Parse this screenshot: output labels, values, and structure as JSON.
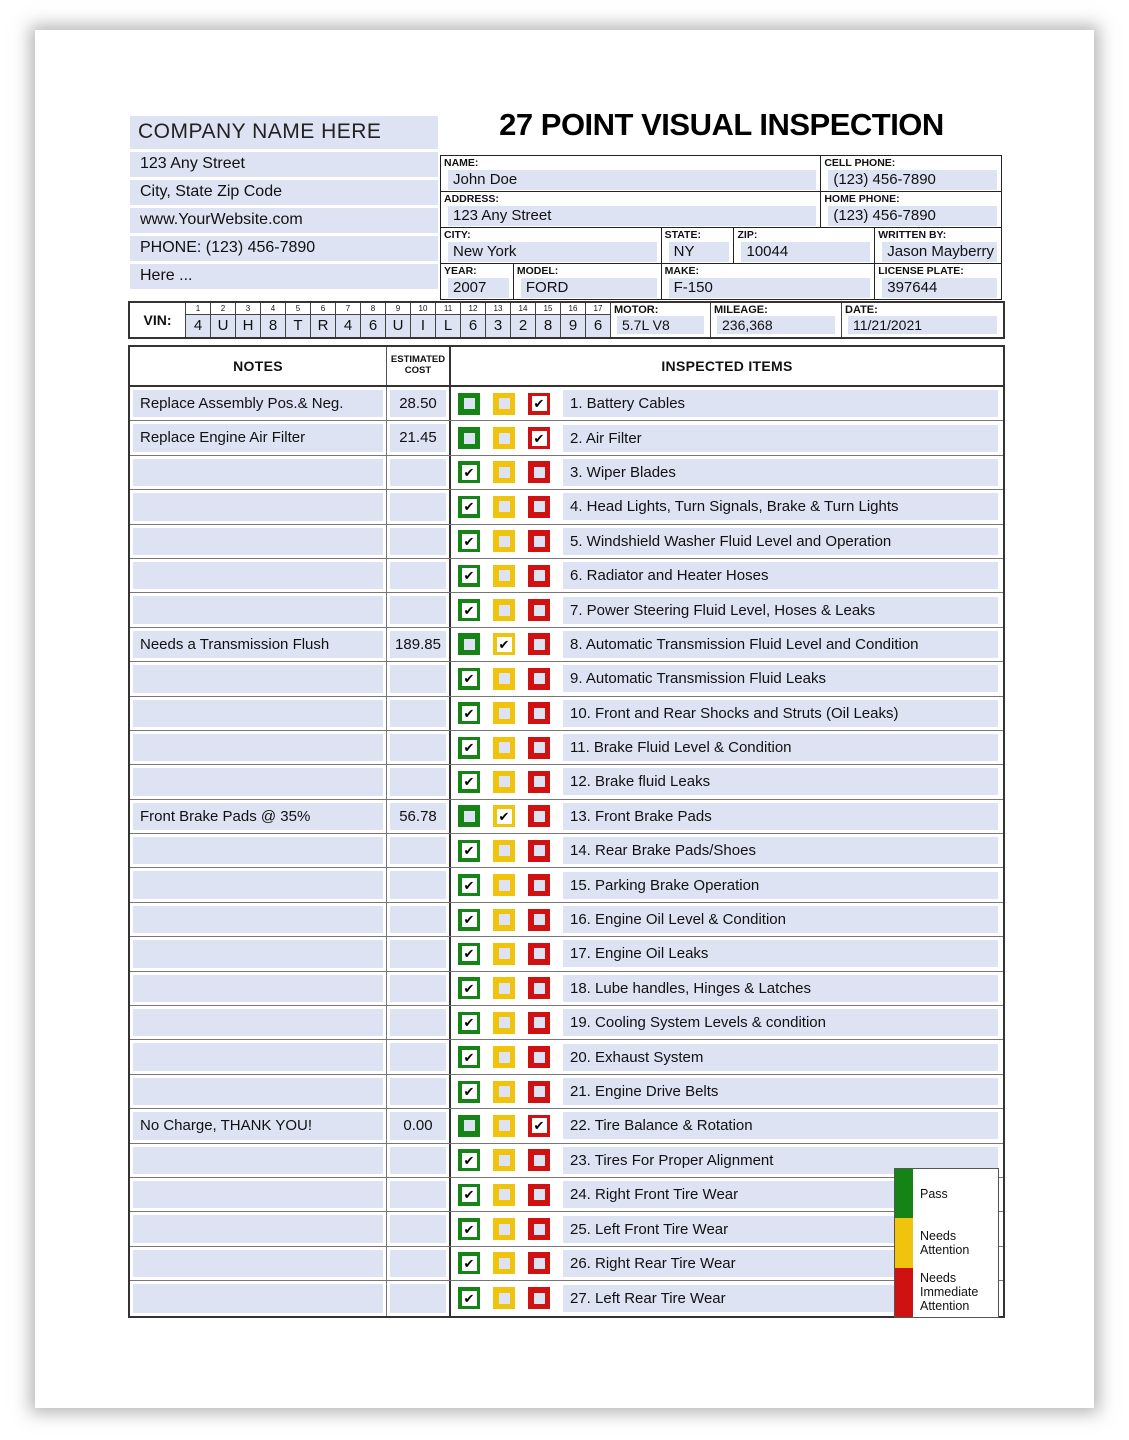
{
  "company": {
    "name": "COMPANY NAME HERE",
    "lines": [
      "123 Any Street",
      "City, State Zip Code",
      "www.YourWebsite.com",
      "PHONE: (123) 456-7890",
      "Here ..."
    ]
  },
  "title": "27 POINT VISUAL INSPECTION",
  "form": {
    "name_label": "NAME:",
    "name": "John Doe",
    "cell_label": "CELL PHONE:",
    "cell": "(123) 456-7890",
    "address_label": "ADDRESS:",
    "address": "123 Any Street",
    "home_label": "HOME PHONE:",
    "home": "(123) 456-7890",
    "city_label": "CITY:",
    "city": "New York",
    "state_label": "STATE:",
    "state": "NY",
    "zip_label": "ZIP:",
    "zip": "10044",
    "written_label": "WRITTEN BY:",
    "written_by": "Jason Mayberry",
    "year_label": "YEAR:",
    "year": "2007",
    "model_label": "MODEL:",
    "model": "FORD",
    "make_label": "MAKE:",
    "make": "F-150",
    "plate_label": "LICENSE PLATE:",
    "plate": "397644"
  },
  "vin": {
    "label": "VIN:",
    "positions": [
      "1",
      "2",
      "3",
      "4",
      "5",
      "6",
      "7",
      "8",
      "9",
      "10",
      "11",
      "12",
      "13",
      "14",
      "15",
      "16",
      "17"
    ],
    "chars": [
      "4",
      "U",
      "H",
      "8",
      "T",
      "R",
      "4",
      "6",
      "U",
      "I",
      "L",
      "6",
      "3",
      "2",
      "8",
      "9",
      "6"
    ],
    "motor_label": "MOTOR:",
    "motor": "5.7L V8",
    "mileage_label": "MILEAGE:",
    "mileage": "236,368",
    "date_label": "DATE:",
    "date": "11/21/2021"
  },
  "table": {
    "headers": {
      "notes": "NOTES",
      "cost": "ESTIMATED COST",
      "items": "INSPECTED ITEMS"
    },
    "rows": [
      {
        "note": "Replace Assembly Pos.& Neg.",
        "cost": "28.50",
        "status": "red",
        "item": "1. Battery Cables"
      },
      {
        "note": "Replace Engine Air Filter",
        "cost": "21.45",
        "status": "red",
        "item": "2. Air Filter"
      },
      {
        "note": "",
        "cost": "",
        "status": "green",
        "item": "3. Wiper Blades"
      },
      {
        "note": "",
        "cost": "",
        "status": "green",
        "item": "4. Head Lights, Turn Signals, Brake & Turn Lights"
      },
      {
        "note": "",
        "cost": "",
        "status": "green",
        "item": "5. Windshield Washer Fluid Level and Operation"
      },
      {
        "note": "",
        "cost": "",
        "status": "green",
        "item": "6. Radiator and Heater Hoses"
      },
      {
        "note": "",
        "cost": "",
        "status": "green",
        "item": "7. Power Steering Fluid Level, Hoses & Leaks"
      },
      {
        "note": "Needs a Transmission Flush",
        "cost": "189.85",
        "status": "yellow",
        "item": "8. Automatic Transmission Fluid Level and Condition"
      },
      {
        "note": "",
        "cost": "",
        "status": "green",
        "item": "9. Automatic Transmission Fluid Leaks"
      },
      {
        "note": "",
        "cost": "",
        "status": "green",
        "item": "10. Front and Rear Shocks and Struts (Oil Leaks)"
      },
      {
        "note": "",
        "cost": "",
        "status": "green",
        "item": "11. Brake Fluid Level & Condition"
      },
      {
        "note": "",
        "cost": "",
        "status": "green",
        "item": "12. Brake fluid Leaks"
      },
      {
        "note": "Front Brake Pads @ 35%",
        "cost": "56.78",
        "status": "yellow",
        "item": "13. Front Brake Pads"
      },
      {
        "note": "",
        "cost": "",
        "status": "green",
        "item": "14. Rear Brake Pads/Shoes"
      },
      {
        "note": "",
        "cost": "",
        "status": "green",
        "item": "15. Parking Brake Operation"
      },
      {
        "note": "",
        "cost": "",
        "status": "green",
        "item": "16. Engine Oil Level & Condition"
      },
      {
        "note": "",
        "cost": "",
        "status": "green",
        "item": "17. Engine Oil Leaks"
      },
      {
        "note": "",
        "cost": "",
        "status": "green",
        "item": "18. Lube handles, Hinges & Latches"
      },
      {
        "note": "",
        "cost": "",
        "status": "green",
        "item": "19. Cooling System Levels & condition"
      },
      {
        "note": "",
        "cost": "",
        "status": "green",
        "item": "20. Exhaust System"
      },
      {
        "note": "",
        "cost": "",
        "status": "green",
        "item": "21. Engine Drive Belts"
      },
      {
        "note": "No Charge, THANK YOU!",
        "cost": "0.00",
        "status": "red",
        "item": "22. Tire Balance & Rotation"
      },
      {
        "note": "",
        "cost": "",
        "status": "green",
        "item": "23. Tires For Proper Alignment"
      },
      {
        "note": "",
        "cost": "",
        "status": "green",
        "item": "24. Right Front Tire Wear"
      },
      {
        "note": "",
        "cost": "",
        "status": "green",
        "item": "25. Left Front Tire Wear"
      },
      {
        "note": "",
        "cost": "",
        "status": "green",
        "item": "26. Right Rear Tire Wear"
      },
      {
        "note": "",
        "cost": "",
        "status": "green",
        "item": "27. Left Rear Tire Wear"
      }
    ]
  },
  "legend": {
    "items": [
      {
        "label": "Pass",
        "color": "#168316"
      },
      {
        "label": "Needs Attention",
        "color": "#f0c40d"
      },
      {
        "label": "Needs Immediate Attention",
        "color": "#cf1111"
      }
    ]
  },
  "icons": {
    "check": "✔"
  },
  "colors": {
    "field_bg": "#dee3f3",
    "pass_green": "#168316",
    "attention_yellow": "#f0c40d",
    "immediate_red": "#cf1111"
  }
}
